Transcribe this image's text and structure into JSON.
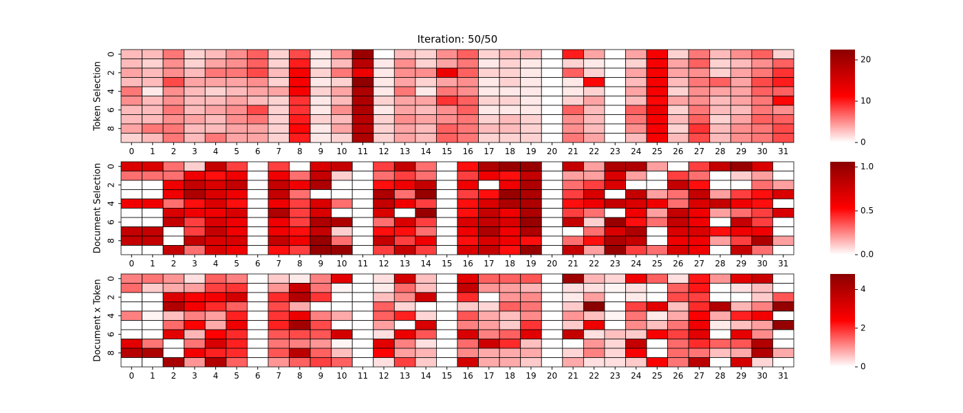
{
  "figure": {
    "title": "Iteration: 50/50"
  },
  "colors": {
    "low": "#ffffff",
    "mid": "#ff0000",
    "high": "#8b0000",
    "grid": "#000000"
  },
  "chart_data": [
    {
      "type": "heatmap",
      "ylabel": "Token Selection",
      "x_ticks": [
        "0",
        "1",
        "2",
        "3",
        "4",
        "5",
        "6",
        "7",
        "8",
        "9",
        "10",
        "11",
        "12",
        "13",
        "14",
        "15",
        "16",
        "17",
        "18",
        "19",
        "20",
        "21",
        "22",
        "23",
        "24",
        "25",
        "26",
        "27",
        "28",
        "29",
        "30",
        "31"
      ],
      "y_ticks": [
        "0",
        "2",
        "4",
        "6",
        "8"
      ],
      "colorbar": {
        "min": 0,
        "max": 22.5,
        "ticks": [
          0,
          10,
          20
        ]
      },
      "values": [
        [
          3,
          3,
          6,
          2,
          3,
          5,
          7,
          2,
          8,
          1,
          5,
          21,
          0,
          3,
          2,
          5,
          7,
          2,
          3,
          3,
          0,
          10,
          4,
          0,
          4,
          12,
          2,
          6,
          3,
          5,
          7,
          2
        ],
        [
          3,
          2,
          5,
          2,
          4,
          5,
          7,
          2,
          10,
          1,
          3,
          18,
          1,
          5,
          2,
          4,
          6,
          1,
          2,
          1,
          0,
          2,
          1,
          0,
          2,
          12,
          4,
          7,
          2,
          3,
          5,
          7
        ],
        [
          4,
          3,
          5,
          3,
          6,
          6,
          8,
          3,
          12,
          2,
          6,
          13,
          1,
          5,
          5,
          13,
          7,
          2,
          2,
          1,
          0,
          7,
          2,
          0,
          4,
          12,
          4,
          5,
          2,
          4,
          6,
          9
        ],
        [
          3,
          3,
          8,
          4,
          4,
          4,
          5,
          2,
          12,
          1,
          2,
          22,
          1,
          4,
          2,
          4,
          5,
          1,
          2,
          1,
          0,
          1,
          11,
          0,
          3,
          12,
          3,
          6,
          7,
          4,
          8,
          10
        ],
        [
          6,
          1,
          5,
          3,
          2,
          3,
          4,
          4,
          12,
          2,
          4,
          19,
          1,
          6,
          1,
          6,
          5,
          1,
          1,
          1,
          0,
          1,
          2,
          0,
          4,
          12,
          2,
          5,
          4,
          4,
          7,
          7
        ],
        [
          5,
          3,
          5,
          3,
          3,
          4,
          3,
          2,
          9,
          1,
          3,
          19,
          2,
          4,
          4,
          9,
          7,
          2,
          2,
          1,
          0,
          2,
          4,
          0,
          3,
          11,
          4,
          5,
          3,
          4,
          6,
          11
        ],
        [
          3,
          3,
          6,
          3,
          4,
          5,
          8,
          2,
          9,
          1,
          5,
          19,
          1,
          4,
          3,
          5,
          7,
          1,
          1,
          1,
          0,
          7,
          3,
          0,
          7,
          13,
          2,
          6,
          3,
          3,
          6,
          5
        ],
        [
          3,
          3,
          5,
          4,
          3,
          5,
          6,
          2,
          10,
          2,
          3,
          18,
          2,
          5,
          4,
          5,
          6,
          2,
          3,
          2,
          0,
          5,
          3,
          0,
          6,
          12,
          3,
          7,
          2,
          4,
          7,
          7
        ],
        [
          4,
          6,
          6,
          3,
          3,
          4,
          4,
          2,
          11,
          1,
          4,
          18,
          2,
          4,
          3,
          7,
          6,
          3,
          3,
          2,
          0,
          5,
          3,
          0,
          5,
          12,
          2,
          9,
          3,
          5,
          6,
          8
        ],
        [
          2,
          3,
          6,
          3,
          6,
          4,
          4,
          2,
          10,
          1,
          2,
          19,
          2,
          4,
          3,
          7,
          6,
          2,
          2,
          2,
          0,
          6,
          4,
          0,
          3,
          12,
          3,
          8,
          3,
          5,
          6,
          8
        ]
      ]
    },
    {
      "type": "heatmap",
      "ylabel": "Document Selection",
      "x_ticks": [
        "0",
        "1",
        "2",
        "3",
        "4",
        "5",
        "6",
        "7",
        "8",
        "9",
        "10",
        "11",
        "12",
        "13",
        "14",
        "15",
        "16",
        "17",
        "18",
        "19",
        "20",
        "21",
        "22",
        "23",
        "24",
        "25",
        "26",
        "27",
        "28",
        "29",
        "30",
        "31"
      ],
      "y_ticks": [
        "0",
        "2",
        "4",
        "6",
        "8"
      ],
      "colorbar": {
        "min": 0,
        "max": 1.06,
        "ticks": [
          0.0,
          0.5,
          1.0
        ]
      },
      "values": [
        [
          0.7,
          0.7,
          0.3,
          0.1,
          0.8,
          0.4,
          0,
          0.4,
          0,
          0.7,
          0.8,
          0,
          0.4,
          0.8,
          0.3,
          0,
          0.5,
          0.9,
          1.0,
          1.0,
          0,
          0.8,
          0.2,
          0.9,
          0.9,
          0.2,
          0,
          0.4,
          0.8,
          1.0,
          0.7,
          0
        ],
        [
          0.3,
          0.3,
          0.3,
          0.6,
          0.5,
          0.6,
          0,
          0.6,
          0.3,
          0.8,
          0.1,
          0,
          0.3,
          0.4,
          0.3,
          0,
          0.4,
          0.6,
          0.5,
          0.8,
          0,
          0.2,
          0.2,
          0.7,
          0.2,
          0,
          0.4,
          0.3,
          0,
          0.1,
          0.2,
          0
        ],
        [
          0,
          0,
          0.6,
          0.8,
          0.7,
          0.8,
          0,
          0.8,
          0.6,
          0.9,
          0,
          0,
          0.5,
          0.6,
          0.8,
          0,
          0.6,
          0,
          0.6,
          0.9,
          0,
          0.3,
          0.4,
          0.7,
          0,
          0,
          0.8,
          0.5,
          0,
          0,
          0.3,
          0.2
        ],
        [
          0,
          0,
          0.6,
          0.9,
          0.7,
          0.6,
          0,
          0.8,
          0.3,
          0,
          0,
          0,
          0.9,
          0.3,
          1.0,
          0,
          0.4,
          0.5,
          1.0,
          0.9,
          0,
          0.4,
          0.7,
          0,
          0.8,
          0.2,
          0.3,
          0.8,
          0.2,
          0.4,
          0.5,
          0.7
        ],
        [
          0.6,
          0.6,
          0.3,
          0.5,
          0.7,
          0.5,
          0,
          0.6,
          0.4,
          0.7,
          0.3,
          0,
          0.8,
          0.6,
          0.4,
          0,
          0.5,
          0.7,
          0.9,
          0.9,
          0,
          0.5,
          0.6,
          0.8,
          0.7,
          0.6,
          0.3,
          0.7,
          0.8,
          0.6,
          0.5,
          0
        ],
        [
          0,
          0,
          0.7,
          0.6,
          0.6,
          0.7,
          0,
          0.9,
          0.4,
          0.7,
          0,
          0,
          0.7,
          0,
          1.0,
          0,
          0.5,
          0.8,
          0.6,
          0.9,
          0,
          0.4,
          0.3,
          0,
          0.6,
          0.2,
          0.8,
          0.6,
          0.2,
          0.3,
          0.4,
          0.7
        ],
        [
          0,
          0,
          0.8,
          0.4,
          0.7,
          0.6,
          0,
          0.6,
          0.4,
          0.9,
          0.9,
          0,
          0.3,
          0.7,
          0.4,
          0,
          0.7,
          0.8,
          0.7,
          1.0,
          0,
          0.8,
          0.1,
          1.0,
          0.5,
          0.3,
          0.8,
          0.6,
          0,
          0.8,
          0.4,
          0
        ],
        [
          0.8,
          0.8,
          0,
          0.4,
          0.8,
          0.6,
          0,
          0.6,
          0.5,
          0.8,
          0.1,
          0,
          0.5,
          0.5,
          0.3,
          0,
          0.6,
          0.9,
          0.6,
          0.9,
          0,
          0,
          0.3,
          0.7,
          0.9,
          0,
          0.7,
          0.7,
          0.5,
          0.6,
          0.6,
          0
        ],
        [
          0.8,
          0.8,
          0,
          0.8,
          0.7,
          0.7,
          0,
          0.8,
          0.6,
          1.0,
          0.3,
          0,
          0.8,
          0.4,
          0.6,
          0,
          0.5,
          0.7,
          0.6,
          0.5,
          0,
          0.3,
          0.5,
          0.9,
          0.8,
          0,
          0.6,
          0.6,
          0.2,
          0.4,
          0.9,
          0.2
        ],
        [
          0,
          0,
          0.8,
          0.3,
          0.7,
          0.6,
          0,
          0.5,
          0.4,
          1.0,
          1.0,
          0,
          0.4,
          0.8,
          0.4,
          0,
          0.7,
          0.8,
          0.5,
          1.0,
          0,
          0.8,
          0.2,
          1.0,
          0.4,
          0.3,
          0.7,
          0.6,
          0,
          0.8,
          0.3,
          0
        ]
      ]
    },
    {
      "type": "heatmap",
      "ylabel": "Document x Token",
      "x_ticks": [
        "0",
        "1",
        "2",
        "3",
        "4",
        "5",
        "6",
        "7",
        "8",
        "9",
        "10",
        "11",
        "12",
        "13",
        "14",
        "15",
        "16",
        "17",
        "18",
        "19",
        "20",
        "21",
        "22",
        "23",
        "24",
        "25",
        "26",
        "27",
        "28",
        "29",
        "30",
        "31"
      ],
      "y_ticks": [
        "0",
        "2",
        "4",
        "6",
        "8"
      ],
      "colorbar": {
        "min": 0,
        "max": 4.8,
        "ticks": [
          0,
          2,
          4
        ]
      },
      "values": [
        [
          1.2,
          1.3,
          1.0,
          0.3,
          1.5,
          1.2,
          0,
          0.5,
          0.2,
          1.2,
          3.0,
          0,
          0.3,
          3.3,
          0.6,
          0,
          3.0,
          1.5,
          1.5,
          1.6,
          0,
          4.4,
          0.7,
          0.4,
          2.7,
          1.5,
          0.3,
          2.2,
          1.0,
          3.0,
          3.5,
          0
        ],
        [
          1.4,
          0.5,
          0.8,
          0.9,
          1.8,
          1.9,
          0,
          1.0,
          3.5,
          1.3,
          0.1,
          0,
          0.2,
          1.4,
          0.6,
          0,
          3.6,
          1.0,
          0.9,
          0.7,
          0,
          0.3,
          0.3,
          0.1,
          0.3,
          0,
          1.5,
          2.2,
          0,
          0.3,
          0.6,
          0
        ],
        [
          0,
          0,
          3.1,
          2.5,
          2.6,
          3.3,
          0,
          2.0,
          4.0,
          1.9,
          0,
          0,
          0.6,
          1.1,
          3.4,
          0,
          2.0,
          0,
          1.0,
          1.1,
          0,
          0.2,
          0.9,
          0,
          0.2,
          0,
          1.7,
          1.8,
          0,
          0,
          0.5,
          1.6
        ],
        [
          0,
          0,
          4.0,
          2.6,
          2.0,
          1.5,
          0,
          1.7,
          0.8,
          0,
          0,
          0,
          1.5,
          0.4,
          0,
          0,
          0.5,
          0.4,
          1.5,
          1.3,
          0,
          0.5,
          4.8,
          0,
          1.8,
          3.0,
          0.6,
          2.0,
          4.0,
          0.7,
          1.2,
          4.6
        ],
        [
          1.2,
          0.1,
          0.6,
          1.2,
          0.9,
          2.1,
          0,
          1.9,
          2.8,
          1.2,
          0.8,
          0,
          1.5,
          2.1,
          0.4,
          0,
          1.6,
          0.8,
          0.6,
          1.1,
          0,
          1.0,
          0.6,
          0.1,
          1.3,
          0.2,
          0.8,
          2.5,
          0.8,
          2.1,
          2.6,
          0
        ],
        [
          0,
          0,
          1.4,
          2.4,
          0.8,
          2.7,
          0,
          2.1,
          4.3,
          1.7,
          0,
          0,
          0.9,
          0,
          3.2,
          0,
          1.2,
          0.9,
          0.5,
          1.9,
          0,
          0.5,
          2.7,
          0,
          1.1,
          0.6,
          1.3,
          2.7,
          0.2,
          0.6,
          0.9,
          4.6
        ],
        [
          0,
          0,
          3.0,
          0.7,
          2.4,
          2.0,
          0,
          1.6,
          1.7,
          1.6,
          3.3,
          0,
          0.3,
          2.8,
          1.6,
          0,
          3.2,
          1.2,
          1.5,
          3.0,
          0,
          3.6,
          0.3,
          0.6,
          0.5,
          2.5,
          1.8,
          3.0,
          0,
          2.9,
          1.1,
          0
        ],
        [
          3.0,
          1.3,
          0,
          1.3,
          3.2,
          2.1,
          0,
          1.3,
          1.2,
          1.0,
          0.1,
          0,
          3.0,
          1.2,
          0.3,
          0,
          1.4,
          3.4,
          2.0,
          0.6,
          0,
          0,
          1.0,
          0.4,
          3.6,
          0,
          1.4,
          2.0,
          1.5,
          1.6,
          4.0,
          0
        ],
        [
          3.9,
          4.1,
          0,
          2.6,
          2.1,
          2.0,
          0,
          1.6,
          3.8,
          1.5,
          0.6,
          0,
          2.4,
          0.9,
          0.7,
          0,
          1.1,
          0.8,
          0.8,
          0.8,
          0,
          0.4,
          1.2,
          0.4,
          2.5,
          0,
          1.4,
          1.3,
          0.6,
          0.8,
          4.0,
          0.8
        ],
        [
          0,
          0,
          4.2,
          1.0,
          4.0,
          1.5,
          0,
          1.0,
          1.5,
          1.8,
          1.5,
          0,
          0.3,
          1.8,
          0.5,
          0,
          3.3,
          0.8,
          0.8,
          0.5,
          0,
          0.8,
          0.3,
          0.3,
          0.5,
          2.5,
          1.3,
          3.8,
          0,
          3.3,
          0.4,
          0
        ]
      ]
    }
  ]
}
